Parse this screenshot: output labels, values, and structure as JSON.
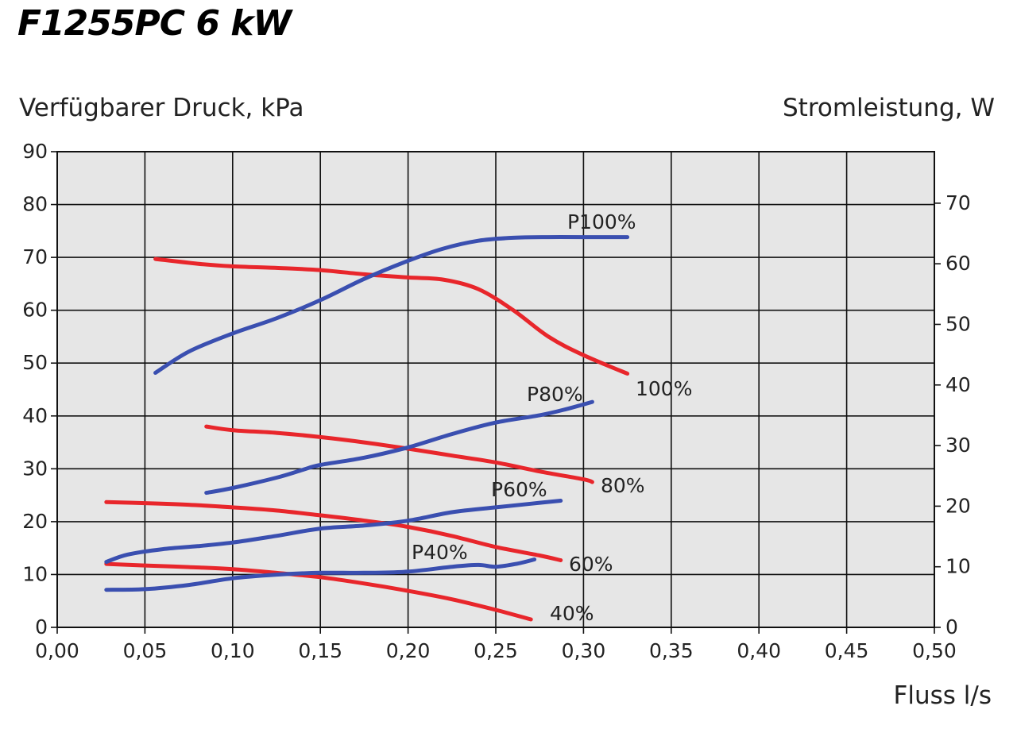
{
  "title": "F1255PC 6 kW",
  "chart_data": {
    "type": "line",
    "title": "F1255PC 6 kW",
    "xlabel": "Fluss l/s",
    "ylabel_left": "Verfügbarer Druck, kPa",
    "ylabel_right": "Stromleistung, W",
    "xlim": [
      0,
      0.5
    ],
    "ylim_left": [
      0,
      90
    ],
    "ylim_right": [
      0,
      78.5
    ],
    "grid": true,
    "x_ticks": [
      "0,00",
      "0,05",
      "0,10",
      "0,15",
      "0,20",
      "0,25",
      "0,30",
      "0,35",
      "0,40",
      "0,45",
      "0,50"
    ],
    "y_left_ticks": [
      "0",
      "10",
      "20",
      "30",
      "40",
      "50",
      "60",
      "70",
      "80",
      "90"
    ],
    "y_right_ticks": [
      "0",
      "10",
      "20",
      "30",
      "40",
      "50",
      "60",
      "70"
    ],
    "colors": {
      "pressure": "#e8262b",
      "power": "#3a4fb0",
      "grid": "#111111",
      "plot_bg": "#e6e6e6"
    },
    "series": [
      {
        "name": "100%",
        "kind": "pressure",
        "axis": "left",
        "x": [
          0.056,
          0.08,
          0.1,
          0.125,
          0.15,
          0.175,
          0.2,
          0.22,
          0.24,
          0.26,
          0.28,
          0.3,
          0.325
        ],
        "y": [
          69.7,
          68.8,
          68.3,
          68,
          67.6,
          66.8,
          66.2,
          65.8,
          64,
          60,
          55,
          51.5,
          48
        ]
      },
      {
        "name": "80%",
        "kind": "pressure",
        "axis": "left",
        "x": [
          0.085,
          0.1,
          0.125,
          0.15,
          0.175,
          0.2,
          0.225,
          0.25,
          0.275,
          0.3,
          0.305
        ],
        "y": [
          38,
          37.3,
          36.8,
          36,
          35,
          33.8,
          32.5,
          31.2,
          29.5,
          28,
          27.5
        ]
      },
      {
        "name": "60%",
        "kind": "pressure",
        "axis": "left",
        "x": [
          0.028,
          0.05,
          0.075,
          0.1,
          0.125,
          0.15,
          0.175,
          0.2,
          0.225,
          0.25,
          0.275,
          0.287
        ],
        "y": [
          23.7,
          23.5,
          23.2,
          22.7,
          22.1,
          21.2,
          20.2,
          19,
          17.3,
          15.2,
          13.6,
          12.7
        ]
      },
      {
        "name": "40%",
        "kind": "pressure",
        "axis": "left",
        "x": [
          0.028,
          0.05,
          0.075,
          0.1,
          0.125,
          0.15,
          0.175,
          0.2,
          0.225,
          0.25,
          0.27
        ],
        "y": [
          12,
          11.7,
          11.4,
          11,
          10.3,
          9.5,
          8.3,
          6.9,
          5.3,
          3.3,
          1.5
        ]
      },
      {
        "name": "P100%",
        "kind": "power",
        "axis": "right",
        "x": [
          0.056,
          0.075,
          0.1,
          0.125,
          0.15,
          0.175,
          0.2,
          0.22,
          0.24,
          0.26,
          0.28,
          0.3,
          0.325
        ],
        "y": [
          42,
          45.5,
          48.5,
          51,
          54,
          57.5,
          60.5,
          62.5,
          63.8,
          64.3,
          64.4,
          64.4,
          64.4
        ]
      },
      {
        "name": "P80%",
        "kind": "power",
        "axis": "right",
        "x": [
          0.085,
          0.1,
          0.125,
          0.14,
          0.15,
          0.175,
          0.2,
          0.225,
          0.25,
          0.275,
          0.29,
          0.305
        ],
        "y": [
          22.2,
          23,
          24.7,
          26,
          26.8,
          28,
          29.7,
          31.9,
          33.8,
          35,
          36,
          37.2
        ]
      },
      {
        "name": "P60%",
        "kind": "power",
        "axis": "right",
        "x": [
          0.028,
          0.04,
          0.06,
          0.08,
          0.1,
          0.125,
          0.15,
          0.175,
          0.2,
          0.225,
          0.25,
          0.27,
          0.287
        ],
        "y": [
          10.8,
          12,
          12.9,
          13.4,
          14,
          15.1,
          16.3,
          16.8,
          17.6,
          19,
          19.8,
          20.4,
          20.9
        ]
      },
      {
        "name": "P40%",
        "kind": "power",
        "axis": "right",
        "x": [
          0.028,
          0.05,
          0.075,
          0.1,
          0.125,
          0.15,
          0.175,
          0.2,
          0.225,
          0.24,
          0.25,
          0.262,
          0.272
        ],
        "y": [
          6.2,
          6.3,
          7,
          8.1,
          8.7,
          9,
          9,
          9.2,
          10,
          10.3,
          10,
          10.5,
          11.2
        ]
      }
    ]
  }
}
